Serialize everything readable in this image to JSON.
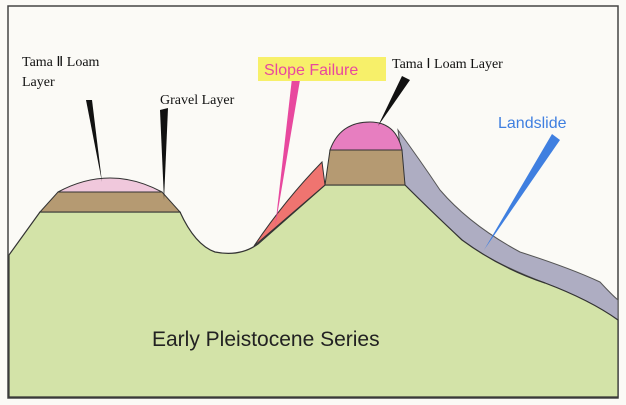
{
  "labels": {
    "tama2": [
      "Tama Ⅱ Loam",
      "Layer"
    ],
    "gravel": "Gravel Layer",
    "slope_failure": "Slope Failure",
    "tama1": "Tama Ⅰ Loam Layer",
    "landslide": "Landslide",
    "series": "Early Pleistocene Series"
  }
}
